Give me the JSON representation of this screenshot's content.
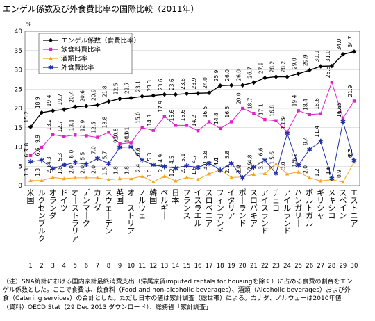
{
  "chart_data": {
    "type": "line",
    "title": "エンゲル係数及び外食費比率の国際比較（2011年）",
    "ylabel": "%",
    "ylim": [
      0,
      40
    ],
    "yticks": [
      0,
      5,
      10,
      15,
      20,
      25,
      30,
      35,
      40
    ],
    "grid": true,
    "legend_position": "top-left",
    "categories": [
      "米国",
      "ルクセンブルク",
      "オランダ",
      "ドイツ",
      "オーストラリア",
      "デンマーク",
      "カナダ",
      "スウェーデン",
      "英国",
      "オーストリア",
      "ノルウェー",
      "韓国",
      "ベルギー",
      "日本",
      "フランス",
      "イスラエル",
      "スロベニア",
      "フィンランド",
      "イタリア",
      "ポーランド",
      "スロバキア",
      "アイスランド",
      "チェコ",
      "アイルランド",
      "ハンガリー",
      "ポルトガル",
      "ギリシャ",
      "メキシコ",
      "スペイン",
      "エストニア"
    ],
    "index_numbers": [
      "1",
      "2",
      "3",
      "4",
      "5",
      "6",
      "7",
      "8",
      "9",
      "10",
      "11",
      "12",
      "13",
      "14",
      "15",
      "16",
      "17",
      "18",
      "19",
      "20",
      "21",
      "22",
      "23",
      "24",
      "25",
      "26",
      "27",
      "28",
      "29",
      "30"
    ],
    "series": [
      {
        "name": "エンゲル係数（食費比率）",
        "color": "#000000",
        "values": [
          15.2,
          18.9,
          19.4,
          19.7,
          20.4,
          20.6,
          20.9,
          21.8,
          22.5,
          22.7,
          23.1,
          23.3,
          23.6,
          23.6,
          23.8,
          23.9,
          24.0,
          25.9,
          26.0,
          26.0,
          26.7,
          27.9,
          28.2,
          28.2,
          29.0,
          29.9,
          30.9,
          31.0,
          34.0,
          34.7
        ]
      },
      {
        "name": "飲食料費比率",
        "color": "#e020c8",
        "values": [
          7.8,
          9.9,
          13.2,
          12.7,
          13.1,
          12.9,
          12.5,
          13.8,
          10.8,
          11.1,
          15.0,
          14.3,
          17.9,
          15.6,
          15.6,
          14.2,
          16.5,
          14.8,
          16.5,
          20.0,
          18.7,
          17.1,
          16.8,
          13.9,
          19.4,
          18.4,
          18.6,
          26.8,
          17.5,
          21.9
        ]
      },
      {
        "name": "酒類比率",
        "color": "#f5a623",
        "values": [
          1.3,
          1.3,
          2.1,
          1.8,
          2.0,
          2.0,
          2.0,
          1.5,
          1.8,
          1.8,
          2.4,
          1.0,
          2.4,
          1.2,
          2.1,
          1.6,
          3.0,
          4.1,
          2.1,
          2.2,
          2.9,
          3.1,
          5.6,
          3.0,
          3.5,
          2.0,
          1.2,
          1.5,
          0.9,
          6.1
        ]
      },
      {
        "name": "外食費比率",
        "color": "#1f2fa8",
        "values": [
          6.2,
          6.6,
          4.3,
          5.3,
          6.0,
          5.5,
          7.0,
          5.7,
          9.9,
          10.0,
          6.6,
          5.3,
          4.9,
          4.5,
          5.1,
          4.7,
          5.8,
          4.0,
          5.8,
          2.0,
          4.8,
          6.6,
          3.1,
          13.5,
          5.2,
          9.4,
          11.4,
          1.8,
          16.6,
          6.5
        ]
      }
    ]
  },
  "notes": [
    "（注）SNA統計における国内家計最終消費支出（帰属家賃imputed rentals for housingを除く）に占める食費の割合をエン",
    "ゲル係数とした。ここで食費は、飲食料（Food and non-alcoholic beverages）、酒類（Alcoholic beverages）および外",
    "食（Catering services）の合計とした。ただし日本の値は家計調査（総世帯）による。カナダ、ノルウェーは2010年値",
    "（資料）OECD.Stat（29 Dec 2013 ダウンロード）、総務省「家計調査」"
  ]
}
